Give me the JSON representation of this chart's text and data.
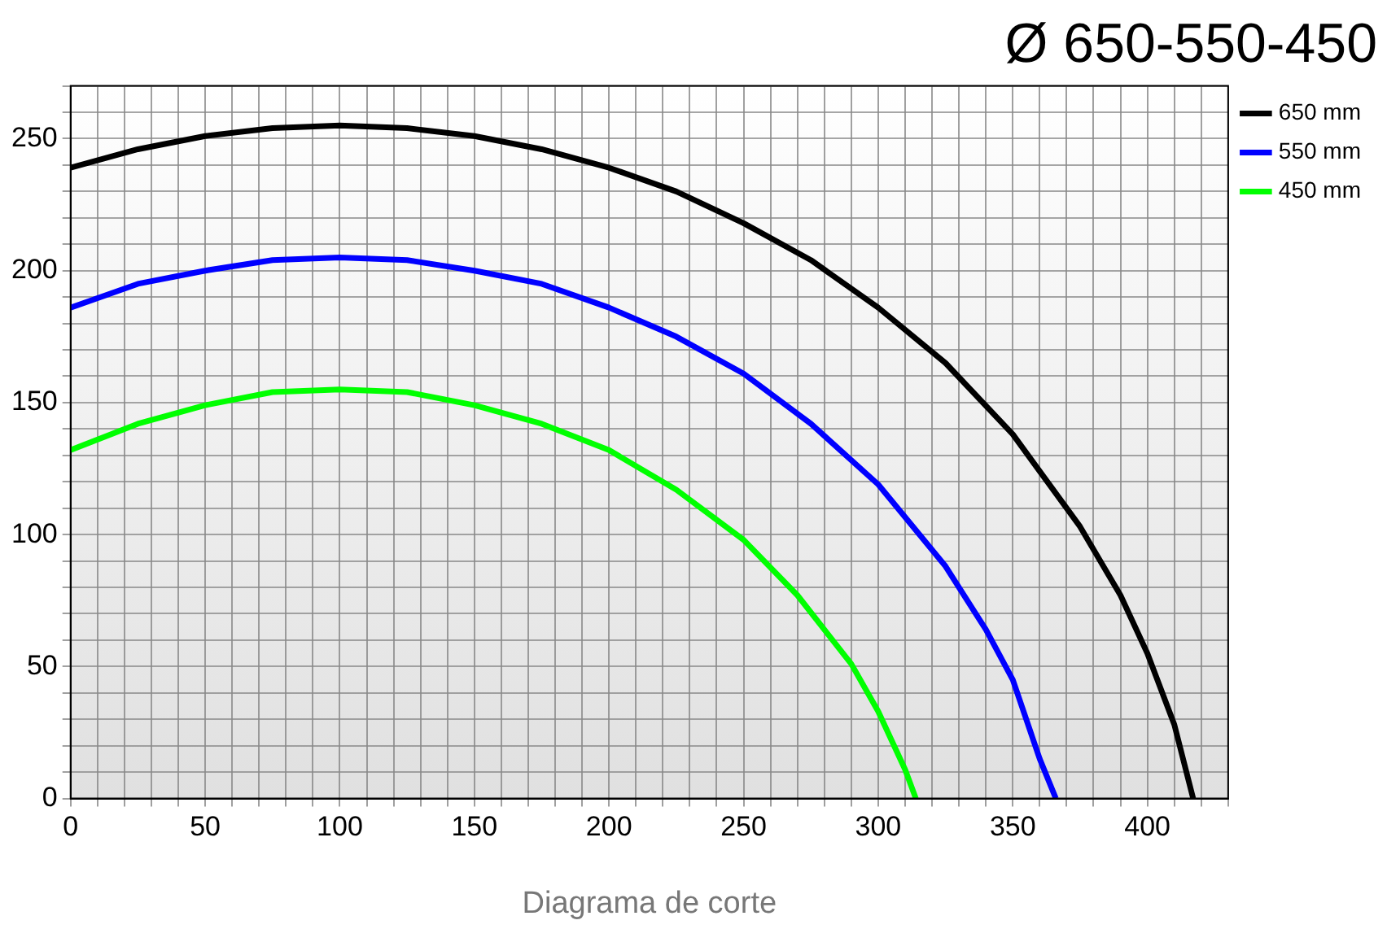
{
  "chart_data": {
    "type": "line",
    "title": "Ø 650-550-450",
    "xlabel": "Diagrama de corte",
    "xlim": [
      0,
      430
    ],
    "ylim": [
      0,
      270
    ],
    "xticks": [
      0,
      {
        "value": 10,
        "label": null
      },
      {
        "value": 20,
        "label": null
      },
      {
        "value": 30,
        "label": null
      },
      {
        "value": 40,
        "label": null
      },
      50,
      {
        "value": 60,
        "label": null
      },
      {
        "value": 70,
        "label": null
      },
      {
        "value": 80,
        "label": null
      },
      {
        "value": 90,
        "label": null
      },
      100,
      {
        "value": 110,
        "label": null
      },
      {
        "value": 120,
        "label": null
      },
      {
        "value": 130,
        "label": null
      },
      {
        "value": 140,
        "label": null
      },
      150,
      {
        "value": 160,
        "label": null
      },
      {
        "value": 170,
        "label": null
      },
      {
        "value": 180,
        "label": null
      },
      {
        "value": 190,
        "label": null
      },
      200,
      {
        "value": 210,
        "label": null
      },
      {
        "value": 220,
        "label": null
      },
      {
        "value": 230,
        "label": null
      },
      {
        "value": 240,
        "label": null
      },
      250,
      {
        "value": 260,
        "label": null
      },
      {
        "value": 270,
        "label": null
      },
      {
        "value": 280,
        "label": null
      },
      {
        "value": 290,
        "label": null
      },
      300,
      {
        "value": 310,
        "label": null
      },
      {
        "value": 320,
        "label": null
      },
      {
        "value": 330,
        "label": null
      },
      {
        "value": 340,
        "label": null
      },
      350,
      {
        "value": 360,
        "label": null
      },
      {
        "value": 370,
        "label": null
      },
      {
        "value": 380,
        "label": null
      },
      {
        "value": 390,
        "label": null
      },
      400,
      {
        "value": 410,
        "label": null
      },
      {
        "value": 420,
        "label": null
      },
      {
        "value": 430,
        "label": null
      }
    ],
    "yticks": [
      0,
      {
        "value": 10,
        "label": null
      },
      {
        "value": 20,
        "label": null
      },
      {
        "value": 30,
        "label": null
      },
      {
        "value": 40,
        "label": null
      },
      50,
      {
        "value": 60,
        "label": null
      },
      {
        "value": 70,
        "label": null
      },
      {
        "value": 80,
        "label": null
      },
      {
        "value": 90,
        "label": null
      },
      100,
      {
        "value": 110,
        "label": null
      },
      {
        "value": 120,
        "label": null
      },
      {
        "value": 130,
        "label": null
      },
      {
        "value": 140,
        "label": null
      },
      150,
      {
        "value": 160,
        "label": null
      },
      {
        "value": 170,
        "label": null
      },
      {
        "value": 180,
        "label": null
      },
      {
        "value": 190,
        "label": null
      },
      200,
      {
        "value": 210,
        "label": null
      },
      {
        "value": 220,
        "label": null
      },
      {
        "value": 230,
        "label": null
      },
      {
        "value": 240,
        "label": null
      },
      250,
      {
        "value": 260,
        "label": null
      },
      {
        "value": 270,
        "label": null
      }
    ],
    "grid": true,
    "legend": "top right",
    "marker": "none",
    "line_style": "solid",
    "series": [
      {
        "name": "650 mm",
        "color": "#000000",
        "x": [
          0,
          25,
          50,
          75,
          100,
          125,
          150,
          175,
          200,
          225,
          250,
          275,
          300,
          325,
          350,
          375,
          390,
          400,
          410,
          417
        ],
        "values": [
          239,
          246,
          251,
          254,
          255,
          254,
          251,
          246,
          239,
          230,
          218,
          204,
          186,
          165,
          138,
          103,
          77,
          55,
          28,
          0
        ]
      },
      {
        "name": "550 mm",
        "color": "#0000ff",
        "x": [
          0,
          25,
          50,
          75,
          100,
          125,
          150,
          175,
          200,
          225,
          250,
          275,
          300,
          325,
          340,
          350,
          360,
          366
        ],
        "values": [
          186,
          195,
          200,
          204,
          205,
          204,
          200,
          195,
          186,
          175,
          161,
          142,
          119,
          88,
          64,
          45,
          15,
          0
        ]
      },
      {
        "name": "450 mm",
        "color": "#00ff00",
        "x": [
          0,
          25,
          50,
          75,
          100,
          125,
          150,
          175,
          200,
          225,
          250,
          270,
          290,
          300,
          310,
          314
        ],
        "values": [
          132,
          142,
          149,
          154,
          155,
          154,
          149,
          142,
          132,
          117,
          98,
          77,
          51,
          33,
          11,
          0
        ]
      }
    ]
  }
}
